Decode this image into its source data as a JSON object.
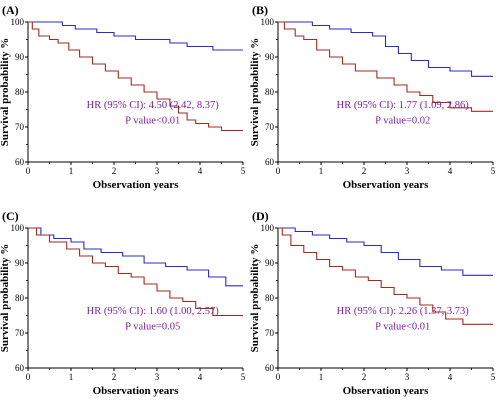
{
  "colors": {
    "series_blue": "#2b2bc8",
    "series_red": "#a52a1e",
    "annotation": "#7a1fa2",
    "axis": "#000000"
  },
  "chart_data": [
    {
      "type": "line",
      "panel_label": "(A)",
      "xlabel": "Observation years",
      "ylabel": "Survival probability %",
      "xlim": [
        0,
        5
      ],
      "ylim": [
        60,
        100
      ],
      "x_ticks": [
        "0",
        "1",
        "2",
        "3",
        "4",
        "5"
      ],
      "y_ticks": [
        "60",
        "70",
        "80",
        "90",
        "100"
      ],
      "annotation": [
        "HR (95% CI): 4.50 (2.42, 8.37)",
        "P value<0.01"
      ],
      "series": [
        {
          "color": "#2b2bc8",
          "x": [
            0,
            0.8,
            0.8,
            1.1,
            1.1,
            1.6,
            1.6,
            2.0,
            2.0,
            2.5,
            2.5,
            3.3,
            3.3,
            3.7,
            3.7,
            4.3,
            4.3,
            5.0
          ],
          "y": [
            100,
            100,
            99,
            99,
            98,
            98,
            97,
            97,
            96,
            96,
            95,
            95,
            94,
            94,
            93,
            93,
            92,
            92
          ]
        },
        {
          "color": "#a52a1e",
          "x": [
            0,
            0.1,
            0.1,
            0.25,
            0.25,
            0.5,
            0.5,
            0.7,
            0.7,
            0.95,
            0.95,
            1.2,
            1.2,
            1.5,
            1.5,
            1.8,
            1.8,
            2.1,
            2.1,
            2.4,
            2.4,
            2.7,
            2.7,
            3.0,
            3.0,
            3.3,
            3.3,
            3.5,
            3.5,
            3.7,
            3.7,
            3.9,
            3.9,
            4.2,
            4.2,
            4.5,
            4.5,
            5.0
          ],
          "y": [
            100,
            100,
            98,
            98,
            96,
            96,
            95,
            95,
            94,
            94,
            92,
            92,
            90,
            90,
            88,
            88,
            86,
            86,
            84,
            84,
            82,
            82,
            80,
            80,
            78,
            78,
            76,
            76,
            74,
            74,
            72,
            72,
            71,
            71,
            70,
            70,
            69,
            69
          ]
        }
      ]
    },
    {
      "type": "line",
      "panel_label": "(B)",
      "xlabel": "Observation years",
      "ylabel": "Survival probability %",
      "xlim": [
        0,
        5
      ],
      "ylim": [
        60,
        100
      ],
      "x_ticks": [
        "0",
        "1",
        "2",
        "3",
        "4",
        "5"
      ],
      "y_ticks": [
        "60",
        "70",
        "80",
        "90",
        "100"
      ],
      "annotation": [
        "HR (95% CI): 1.77 (1.09, 2.86)",
        "P value=0.02"
      ],
      "series": [
        {
          "color": "#2b2bc8",
          "x": [
            0,
            0.8,
            0.8,
            1.2,
            1.2,
            1.7,
            1.7,
            2.2,
            2.2,
            2.5,
            2.5,
            2.8,
            2.8,
            3.1,
            3.1,
            3.5,
            3.5,
            4.0,
            4.0,
            4.5,
            4.5,
            5.0
          ],
          "y": [
            100,
            100,
            99,
            99,
            98,
            98,
            97,
            97,
            96,
            96,
            93,
            93,
            91,
            91,
            89,
            89,
            87,
            87,
            86,
            86,
            84.5,
            84.5
          ]
        },
        {
          "color": "#a52a1e",
          "x": [
            0,
            0.15,
            0.15,
            0.4,
            0.4,
            0.6,
            0.6,
            0.9,
            0.9,
            1.2,
            1.2,
            1.5,
            1.5,
            1.8,
            1.8,
            2.3,
            2.3,
            2.7,
            2.7,
            3.0,
            3.0,
            3.3,
            3.3,
            3.6,
            3.6,
            4.0,
            4.0,
            4.5,
            4.5,
            5.0
          ],
          "y": [
            100,
            100,
            98,
            98,
            96,
            96,
            95,
            95,
            92,
            92,
            90,
            90,
            88,
            88,
            86,
            86,
            84,
            84,
            82,
            82,
            80,
            80,
            79,
            79,
            77,
            77,
            75.5,
            75.5,
            74.5,
            74.5
          ]
        }
      ]
    },
    {
      "type": "line",
      "panel_label": "(C)",
      "xlabel": "Observation years",
      "ylabel": "Survival probability %",
      "xlim": [
        0,
        5
      ],
      "ylim": [
        60,
        100
      ],
      "x_ticks": [
        "0",
        "1",
        "2",
        "3",
        "4",
        "5"
      ],
      "y_ticks": [
        "60",
        "70",
        "80",
        "90",
        "100"
      ],
      "annotation": [
        "HR (95% CI): 1.60 (1.00, 2.57)",
        "P value=0.05"
      ],
      "series": [
        {
          "color": "#2b2bc8",
          "x": [
            0,
            0.3,
            0.3,
            0.6,
            0.6,
            1.0,
            1.0,
            1.3,
            1.3,
            1.7,
            1.7,
            2.2,
            2.2,
            2.7,
            2.7,
            3.2,
            3.2,
            3.7,
            3.7,
            4.2,
            4.2,
            4.6,
            4.6,
            5.0
          ],
          "y": [
            100,
            100,
            98,
            98,
            97,
            97,
            96,
            96,
            94,
            94,
            93,
            93,
            92,
            92,
            90,
            90,
            89,
            89,
            88,
            88,
            86,
            86,
            83.5,
            83.5
          ]
        },
        {
          "color": "#a52a1e",
          "x": [
            0,
            0.2,
            0.2,
            0.5,
            0.5,
            0.9,
            0.9,
            1.2,
            1.2,
            1.5,
            1.5,
            1.8,
            1.8,
            2.1,
            2.1,
            2.4,
            2.4,
            2.7,
            2.7,
            3.0,
            3.0,
            3.3,
            3.3,
            3.6,
            3.6,
            3.9,
            3.9,
            4.3,
            4.3,
            5.0
          ],
          "y": [
            100,
            100,
            98,
            98,
            96,
            96,
            94,
            94,
            92,
            92,
            90,
            90,
            89,
            89,
            87,
            87,
            86,
            86,
            84,
            84,
            82,
            82,
            80,
            80,
            79,
            79,
            77,
            77,
            75,
            75
          ]
        }
      ]
    },
    {
      "type": "line",
      "panel_label": "(D)",
      "xlabel": "Observation years",
      "ylabel": "Survival probability %",
      "xlim": [
        0,
        5
      ],
      "ylim": [
        60,
        100
      ],
      "x_ticks": [
        "0",
        "1",
        "2",
        "3",
        "4",
        "5"
      ],
      "y_ticks": [
        "60",
        "70",
        "80",
        "90",
        "100"
      ],
      "annotation": [
        "HR (95% CI): 2.26 (1.37, 3.73)",
        "P value<0.01"
      ],
      "series": [
        {
          "color": "#2b2bc8",
          "x": [
            0,
            0.4,
            0.4,
            0.8,
            0.8,
            1.2,
            1.2,
            1.6,
            1.6,
            2.0,
            2.0,
            2.4,
            2.4,
            2.8,
            2.8,
            3.3,
            3.3,
            3.8,
            3.8,
            4.3,
            4.3,
            5.0
          ],
          "y": [
            100,
            100,
            99,
            99,
            98,
            98,
            97,
            97,
            96,
            96,
            95,
            95,
            93,
            93,
            91,
            91,
            89,
            89,
            88,
            88,
            86.5,
            86.5
          ]
        },
        {
          "color": "#a52a1e",
          "x": [
            0,
            0.1,
            0.1,
            0.3,
            0.3,
            0.6,
            0.6,
            0.9,
            0.9,
            1.2,
            1.2,
            1.5,
            1.5,
            1.8,
            1.8,
            2.1,
            2.1,
            2.4,
            2.4,
            2.7,
            2.7,
            3.0,
            3.0,
            3.3,
            3.3,
            3.6,
            3.6,
            3.9,
            3.9,
            4.3,
            4.3,
            5.0
          ],
          "y": [
            100,
            100,
            98,
            98,
            95,
            95,
            93,
            93,
            91,
            91,
            89,
            89,
            88,
            88,
            86,
            86,
            85,
            85,
            83,
            83,
            81,
            81,
            80,
            80,
            78,
            78,
            76,
            76,
            74,
            74,
            72.5,
            72.5
          ]
        }
      ]
    }
  ]
}
